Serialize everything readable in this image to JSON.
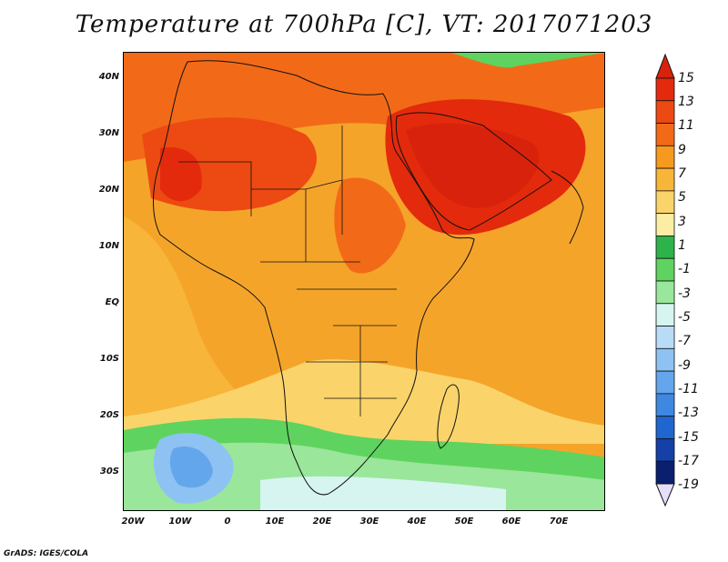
{
  "title": "Temperature at 700hPa [C], VT: 2017071203",
  "footer": "GrADS: IGES/COLA",
  "map": {
    "lat_labels": [
      "40N",
      "30N",
      "20N",
      "10N",
      "EQ",
      "10S",
      "20S",
      "30S"
    ],
    "lon_labels": [
      "20W",
      "10W",
      "0",
      "10E",
      "20E",
      "30E",
      "40E",
      "50E",
      "60E",
      "70E"
    ]
  },
  "colorbar": {
    "labels": [
      "15",
      "13",
      "11",
      "9",
      "7",
      "5",
      "3",
      "1",
      "-1",
      "-3",
      "-5",
      "-7",
      "-9",
      "-11",
      "-13",
      "-15",
      "-17",
      "-19"
    ],
    "colors": [
      "#e32a0c",
      "#ec4a12",
      "#f26a18",
      "#f59a1f",
      "#f7b53a",
      "#fad46a",
      "#fbeda4",
      "#2db34a",
      "#5fd35f",
      "#9ae69a",
      "#d6f5f0",
      "#b9dcf6",
      "#8ec2f3",
      "#64a6ec",
      "#3e88e2",
      "#1f66d0",
      "#1440a8",
      "#0a1f6e"
    ],
    "top_color": "#d8220b",
    "bottom_color": "#e6defb"
  }
}
